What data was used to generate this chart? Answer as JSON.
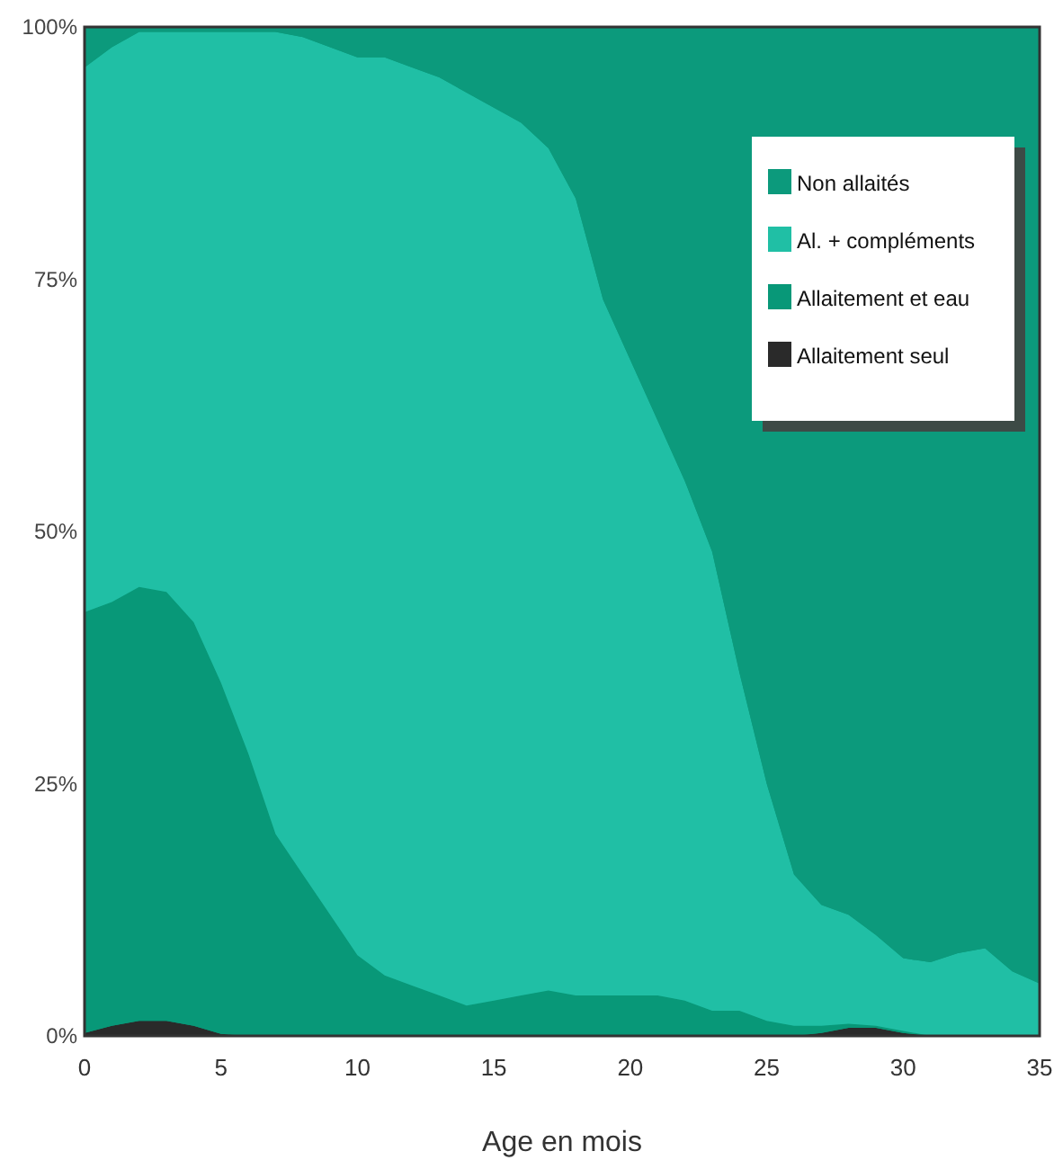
{
  "chart_data": {
    "type": "area",
    "stacked": true,
    "xlabel": "Age en mois",
    "x": [
      0,
      1,
      2,
      3,
      4,
      5,
      6,
      7,
      8,
      9,
      10,
      11,
      12,
      13,
      14,
      15,
      16,
      17,
      18,
      19,
      20,
      21,
      22,
      23,
      24,
      25,
      26,
      27,
      28,
      29,
      30,
      31,
      32,
      33,
      34,
      35
    ],
    "series": [
      {
        "name": "Allaitement seul",
        "color": "#2a2a2a",
        "values": [
          0.3,
          1,
          1.5,
          1.5,
          1,
          0.2,
          0,
          0,
          0,
          0,
          0,
          0,
          0,
          0,
          0,
          0,
          0,
          0,
          0,
          0,
          0,
          0,
          0,
          0,
          0,
          0,
          0,
          0.3,
          0.8,
          0.8,
          0.3,
          0,
          0,
          0,
          0,
          0
        ]
      },
      {
        "name": "Allaitement et eau",
        "color": "#089878",
        "values": [
          41.7,
          42,
          43,
          42.5,
          40,
          34.8,
          28,
          20,
          16,
          12,
          8,
          6,
          5,
          4,
          3,
          3.5,
          4,
          4.5,
          4,
          4,
          4,
          4,
          3.5,
          2.5,
          2.5,
          1.5,
          1,
          0.7,
          0.4,
          0.2,
          0.2,
          0,
          0,
          0,
          0,
          0
        ]
      },
      {
        "name": "Al. + compléments",
        "color": "#20bfa5",
        "values": [
          54,
          55,
          55,
          55.5,
          58.5,
          64.5,
          71.5,
          79.5,
          83,
          86,
          89,
          91,
          91,
          91,
          90.5,
          88.5,
          86.5,
          83.5,
          79,
          69,
          63,
          57,
          51.5,
          45.5,
          33.5,
          23.5,
          15,
          12,
          10.8,
          9,
          7.2,
          7.3,
          8.2,
          8.7,
          6.4,
          5.2
        ]
      },
      {
        "name": "Non allaités",
        "color": "#0c9a7c",
        "values": [
          4,
          2,
          0.5,
          0.5,
          0.5,
          0.5,
          0.5,
          0.5,
          1,
          2,
          3,
          3,
          4,
          5,
          6.5,
          8,
          9.5,
          12,
          17,
          27,
          33,
          39,
          45,
          52,
          64,
          75,
          84,
          87,
          88,
          90,
          92.3,
          92.7,
          91.8,
          91.3,
          93.6,
          94.8
        ]
      }
    ],
    "xlim": [
      0,
      35
    ],
    "xticks": [
      0,
      5,
      10,
      15,
      20,
      25,
      30,
      35
    ],
    "ylim": [
      0,
      100
    ],
    "yticks": [
      {
        "value": 0,
        "label": "0%"
      },
      {
        "value": 25,
        "label": "25%"
      },
      {
        "value": 50,
        "label": "50%"
      },
      {
        "value": 75,
        "label": "75%"
      },
      {
        "value": 100,
        "label": "100%"
      }
    ],
    "legend": "top right",
    "grid": false
  }
}
